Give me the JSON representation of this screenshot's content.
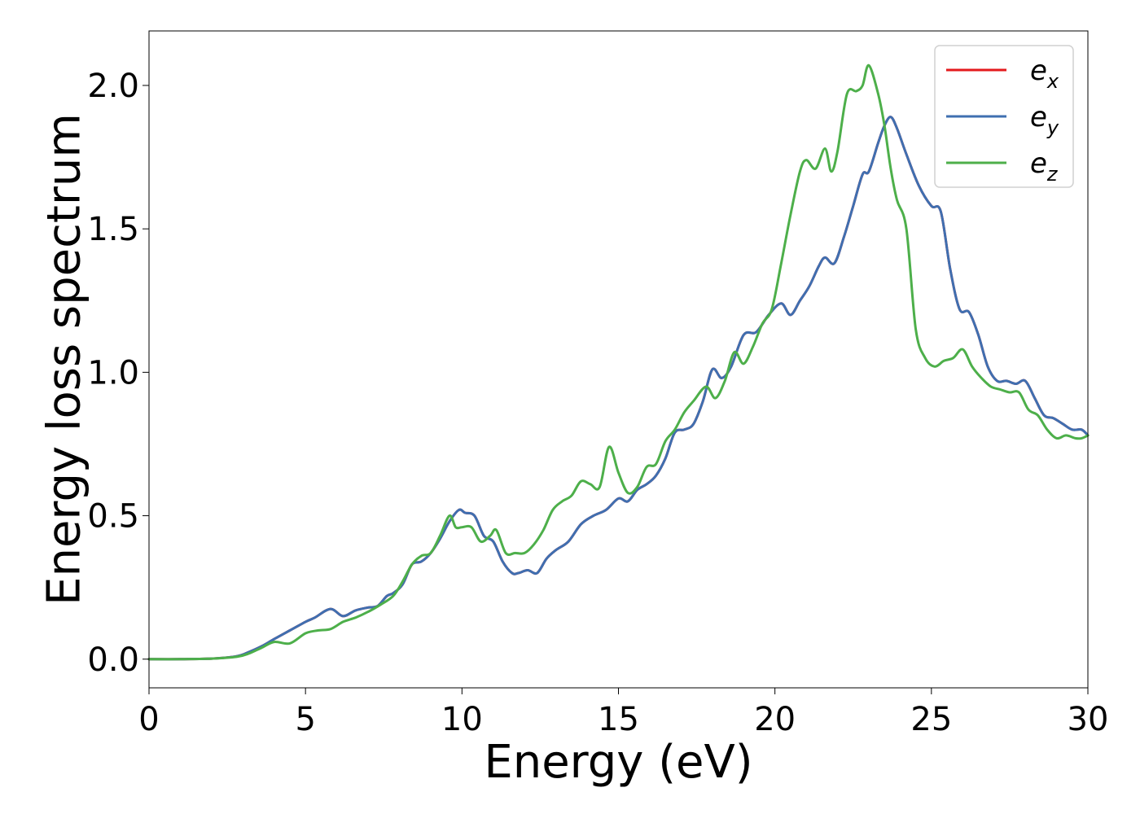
{
  "chart_data": {
    "type": "line",
    "xlabel": "Energy (eV)",
    "ylabel": "Energy loss spectrum",
    "xlim": [
      0,
      30
    ],
    "ylim": [
      -0.1,
      2.19
    ],
    "xticks": [
      0,
      5,
      10,
      15,
      20,
      25,
      30
    ],
    "xtick_labels": [
      "0",
      "5",
      "10",
      "15",
      "20",
      "25",
      "30"
    ],
    "yticks": [
      0.0,
      0.5,
      1.0,
      1.5,
      2.0
    ],
    "ytick_labels": [
      "0.0",
      "0.5",
      "1.0",
      "1.5",
      "2.0"
    ],
    "grid": false,
    "legend_position": "top-right",
    "series": [
      {
        "name": "e_x",
        "label_base": "e",
        "label_sub": "x",
        "color": "#e41a1c",
        "x": [
          0,
          1,
          2,
          2.8,
          3.2,
          3.6,
          4.0,
          4.5,
          5.0,
          5.3,
          5.8,
          6.2,
          6.6,
          7.0,
          7.3,
          7.6,
          7.8,
          8.1,
          8.4,
          8.7,
          9.0,
          9.3,
          9.6,
          9.9,
          10.1,
          10.4,
          10.7,
          11.0,
          11.3,
          11.6,
          11.8,
          12.1,
          12.4,
          12.7,
          13.0,
          13.4,
          13.8,
          14.2,
          14.6,
          15.0,
          15.3,
          15.6,
          15.9,
          16.2,
          16.5,
          16.8,
          17.1,
          17.4,
          17.7,
          18.0,
          18.3,
          18.6,
          19.0,
          19.4,
          19.8,
          20.2,
          20.5,
          20.8,
          21.1,
          21.4,
          21.6,
          21.9,
          22.2,
          22.5,
          22.8,
          23.0,
          23.3,
          23.5,
          23.7,
          23.9,
          24.2,
          24.6,
          25.0,
          25.3,
          25.6,
          25.9,
          26.2,
          26.5,
          26.8,
          27.1,
          27.4,
          27.7,
          28.0,
          28.3,
          28.6,
          28.9,
          29.2,
          29.5,
          29.8,
          30.0
        ],
        "y": [
          0.0,
          0.0,
          0.002,
          0.01,
          0.025,
          0.045,
          0.07,
          0.1,
          0.13,
          0.145,
          0.175,
          0.15,
          0.17,
          0.18,
          0.185,
          0.22,
          0.23,
          0.26,
          0.33,
          0.34,
          0.37,
          0.42,
          0.48,
          0.52,
          0.51,
          0.5,
          0.43,
          0.41,
          0.34,
          0.3,
          0.3,
          0.31,
          0.3,
          0.35,
          0.38,
          0.41,
          0.47,
          0.5,
          0.52,
          0.56,
          0.55,
          0.59,
          0.61,
          0.64,
          0.7,
          0.79,
          0.8,
          0.82,
          0.9,
          1.01,
          0.98,
          1.02,
          1.13,
          1.14,
          1.2,
          1.24,
          1.2,
          1.25,
          1.3,
          1.37,
          1.4,
          1.38,
          1.47,
          1.58,
          1.69,
          1.7,
          1.8,
          1.86,
          1.89,
          1.85,
          1.76,
          1.65,
          1.58,
          1.56,
          1.36,
          1.22,
          1.21,
          1.13,
          1.02,
          0.97,
          0.97,
          0.96,
          0.97,
          0.91,
          0.85,
          0.84,
          0.82,
          0.8,
          0.8,
          0.78
        ]
      },
      {
        "name": "e_y",
        "label_base": "e",
        "label_sub": "y",
        "color": "#3f6fb0",
        "x": [
          0,
          1,
          2,
          2.8,
          3.2,
          3.6,
          4.0,
          4.5,
          5.0,
          5.3,
          5.8,
          6.2,
          6.6,
          7.0,
          7.3,
          7.6,
          7.8,
          8.1,
          8.4,
          8.7,
          9.0,
          9.3,
          9.6,
          9.9,
          10.1,
          10.4,
          10.7,
          11.0,
          11.3,
          11.6,
          11.8,
          12.1,
          12.4,
          12.7,
          13.0,
          13.4,
          13.8,
          14.2,
          14.6,
          15.0,
          15.3,
          15.6,
          15.9,
          16.2,
          16.5,
          16.8,
          17.1,
          17.4,
          17.7,
          18.0,
          18.3,
          18.6,
          19.0,
          19.4,
          19.8,
          20.2,
          20.5,
          20.8,
          21.1,
          21.4,
          21.6,
          21.9,
          22.2,
          22.5,
          22.8,
          23.0,
          23.3,
          23.5,
          23.7,
          23.9,
          24.2,
          24.6,
          25.0,
          25.3,
          25.6,
          25.9,
          26.2,
          26.5,
          26.8,
          27.1,
          27.4,
          27.7,
          28.0,
          28.3,
          28.6,
          28.9,
          29.2,
          29.5,
          29.8,
          30.0
        ],
        "y": [
          0.0,
          0.0,
          0.002,
          0.01,
          0.025,
          0.045,
          0.07,
          0.1,
          0.13,
          0.145,
          0.175,
          0.15,
          0.17,
          0.18,
          0.185,
          0.22,
          0.23,
          0.26,
          0.33,
          0.34,
          0.37,
          0.42,
          0.48,
          0.52,
          0.51,
          0.5,
          0.43,
          0.41,
          0.34,
          0.3,
          0.3,
          0.31,
          0.3,
          0.35,
          0.38,
          0.41,
          0.47,
          0.5,
          0.52,
          0.56,
          0.55,
          0.59,
          0.61,
          0.64,
          0.7,
          0.79,
          0.8,
          0.82,
          0.9,
          1.01,
          0.98,
          1.02,
          1.13,
          1.14,
          1.2,
          1.24,
          1.2,
          1.25,
          1.3,
          1.37,
          1.4,
          1.38,
          1.47,
          1.58,
          1.69,
          1.7,
          1.8,
          1.86,
          1.89,
          1.85,
          1.76,
          1.65,
          1.58,
          1.56,
          1.36,
          1.22,
          1.21,
          1.13,
          1.02,
          0.97,
          0.97,
          0.96,
          0.97,
          0.91,
          0.85,
          0.84,
          0.82,
          0.8,
          0.8,
          0.78
        ]
      },
      {
        "name": "e_z",
        "label_base": "e",
        "label_sub": "z",
        "color": "#4daf4a",
        "x": [
          0,
          1,
          2,
          2.8,
          3.2,
          3.6,
          4.0,
          4.5,
          5.0,
          5.4,
          5.8,
          6.2,
          6.6,
          7.0,
          7.4,
          7.8,
          8.1,
          8.4,
          8.7,
          9.0,
          9.3,
          9.6,
          9.8,
          10.0,
          10.3,
          10.6,
          10.9,
          11.1,
          11.4,
          11.7,
          12.0,
          12.3,
          12.6,
          12.9,
          13.2,
          13.5,
          13.8,
          14.1,
          14.4,
          14.7,
          15.0,
          15.3,
          15.6,
          15.9,
          16.2,
          16.5,
          16.8,
          17.1,
          17.4,
          17.8,
          18.1,
          18.4,
          18.7,
          19.0,
          19.3,
          19.6,
          19.9,
          20.2,
          20.5,
          20.8,
          21.0,
          21.3,
          21.6,
          21.8,
          22.0,
          22.3,
          22.6,
          22.8,
          23.0,
          23.3,
          23.5,
          23.7,
          23.9,
          24.2,
          24.5,
          24.8,
          25.1,
          25.4,
          25.7,
          26.0,
          26.3,
          26.6,
          26.9,
          27.2,
          27.5,
          27.8,
          28.1,
          28.4,
          28.7,
          29.0,
          29.3,
          29.6,
          29.8,
          30.0
        ],
        "y": [
          0.0,
          0.0,
          0.002,
          0.008,
          0.02,
          0.04,
          0.06,
          0.055,
          0.09,
          0.1,
          0.105,
          0.13,
          0.145,
          0.165,
          0.19,
          0.22,
          0.27,
          0.33,
          0.36,
          0.37,
          0.43,
          0.5,
          0.46,
          0.46,
          0.46,
          0.41,
          0.43,
          0.45,
          0.37,
          0.37,
          0.37,
          0.4,
          0.45,
          0.52,
          0.55,
          0.57,
          0.62,
          0.61,
          0.6,
          0.74,
          0.65,
          0.58,
          0.6,
          0.67,
          0.68,
          0.76,
          0.8,
          0.86,
          0.9,
          0.95,
          0.91,
          0.97,
          1.07,
          1.03,
          1.09,
          1.17,
          1.22,
          1.38,
          1.55,
          1.7,
          1.74,
          1.71,
          1.78,
          1.7,
          1.77,
          1.97,
          1.98,
          2.0,
          2.07,
          1.97,
          1.86,
          1.71,
          1.6,
          1.5,
          1.15,
          1.05,
          1.02,
          1.04,
          1.05,
          1.08,
          1.02,
          0.98,
          0.95,
          0.94,
          0.93,
          0.93,
          0.87,
          0.85,
          0.8,
          0.77,
          0.78,
          0.77,
          0.77,
          0.78
        ]
      }
    ]
  }
}
